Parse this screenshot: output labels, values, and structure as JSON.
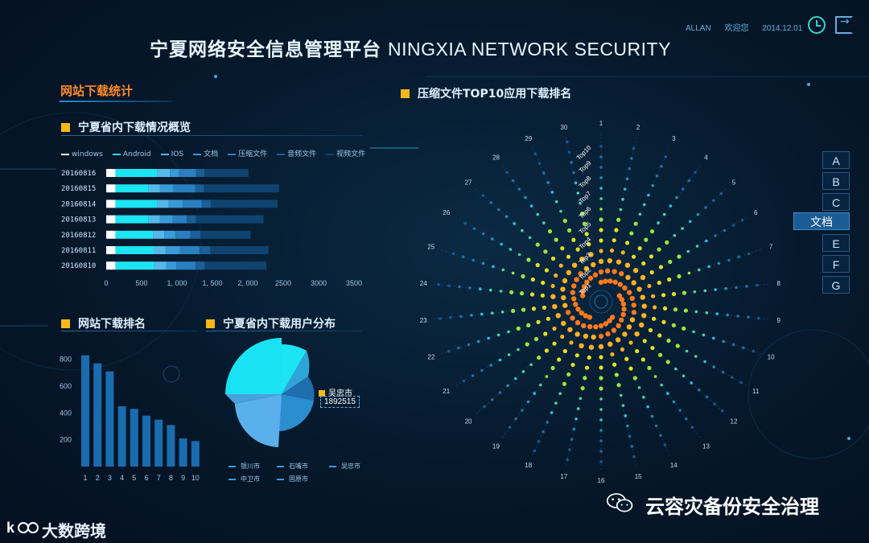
{
  "header": {
    "title_cn": "宁夏网络安全信息管理平台",
    "title_en": "NINGXIA NETWORK SECURITY",
    "user": "ALLAN",
    "greeting": "欢迎您",
    "date": "2014.12.01",
    "icons": [
      "clock-icon",
      "exit-icon"
    ]
  },
  "left": {
    "section_title": "网站下载统计",
    "overview": {
      "title": "宁夏省内下载情况概览",
      "legend": [
        "windows",
        "Android",
        "IOS",
        "文档",
        "压缩文件",
        "音频文件",
        "视频文件"
      ],
      "colors": [
        "#ffffff",
        "#1de4f2",
        "#55b8ea",
        "#3a9ad8",
        "#2a7fc0",
        "#1a5f96",
        "#0f4470"
      ],
      "rows": [
        {
          "date": "20160816",
          "values": [
            130,
            590,
            180,
            130,
            240,
            120,
            620
          ]
        },
        {
          "date": "20160815",
          "values": [
            130,
            470,
            160,
            190,
            310,
            120,
            1060
          ]
        },
        {
          "date": "20160814",
          "values": [
            130,
            590,
            160,
            200,
            270,
            130,
            940
          ]
        },
        {
          "date": "20160813",
          "values": [
            130,
            470,
            160,
            180,
            200,
            130,
            950
          ]
        },
        {
          "date": "20160812",
          "values": [
            130,
            530,
            160,
            160,
            210,
            140,
            710
          ]
        },
        {
          "date": "20160811",
          "values": [
            130,
            540,
            170,
            200,
            280,
            150,
            820
          ]
        },
        {
          "date": "20160810",
          "values": [
            130,
            550,
            170,
            140,
            270,
            130,
            870
          ]
        }
      ],
      "x_ticks": [
        "0",
        "500",
        "1, 000",
        "1, 500",
        "2, 000",
        "2500",
        "3000",
        "3500"
      ],
      "x_max": 3500
    },
    "rank": {
      "title": "网站下载排名",
      "y_ticks": [
        "200",
        "400",
        "600",
        "800"
      ],
      "x_ticks": [
        "1",
        "2",
        "3",
        "4",
        "5",
        "6",
        "7",
        "8",
        "9",
        "10"
      ],
      "values": [
        830,
        770,
        710,
        450,
        430,
        380,
        350,
        310,
        210,
        190
      ],
      "y_max": 900
    },
    "distribution": {
      "title": "宁夏省内下载用户分布",
      "highlight_label": "吴忠市",
      "highlight_value": "1892515",
      "legend": [
        "银川市",
        "石嘴市",
        "吴忠市",
        "中卫市",
        "固原市"
      ]
    }
  },
  "radial": {
    "title": "压缩文件TOP10应用下载排名",
    "spokes": [
      "1",
      "2",
      "3",
      "4",
      "5",
      "6",
      "7",
      "8",
      "9",
      "10",
      "11",
      "12",
      "13",
      "14",
      "15",
      "16",
      "17",
      "18",
      "19",
      "20",
      "21",
      "22",
      "23",
      "24",
      "25",
      "26",
      "27",
      "28",
      "29",
      "30"
    ],
    "tops": [
      "Top1",
      "Top2",
      "Top3",
      "Top4",
      "Top5",
      "Top6",
      "Top7",
      "Top8",
      "Top9",
      "Top10"
    ]
  },
  "side_menu": {
    "items": [
      "A",
      "B",
      "C",
      "文档",
      "E",
      "F",
      "G"
    ],
    "active": "文档"
  },
  "watermarks": {
    "wechat_account": "云容灾备份安全治理",
    "logo_text": "大数跨境"
  }
}
